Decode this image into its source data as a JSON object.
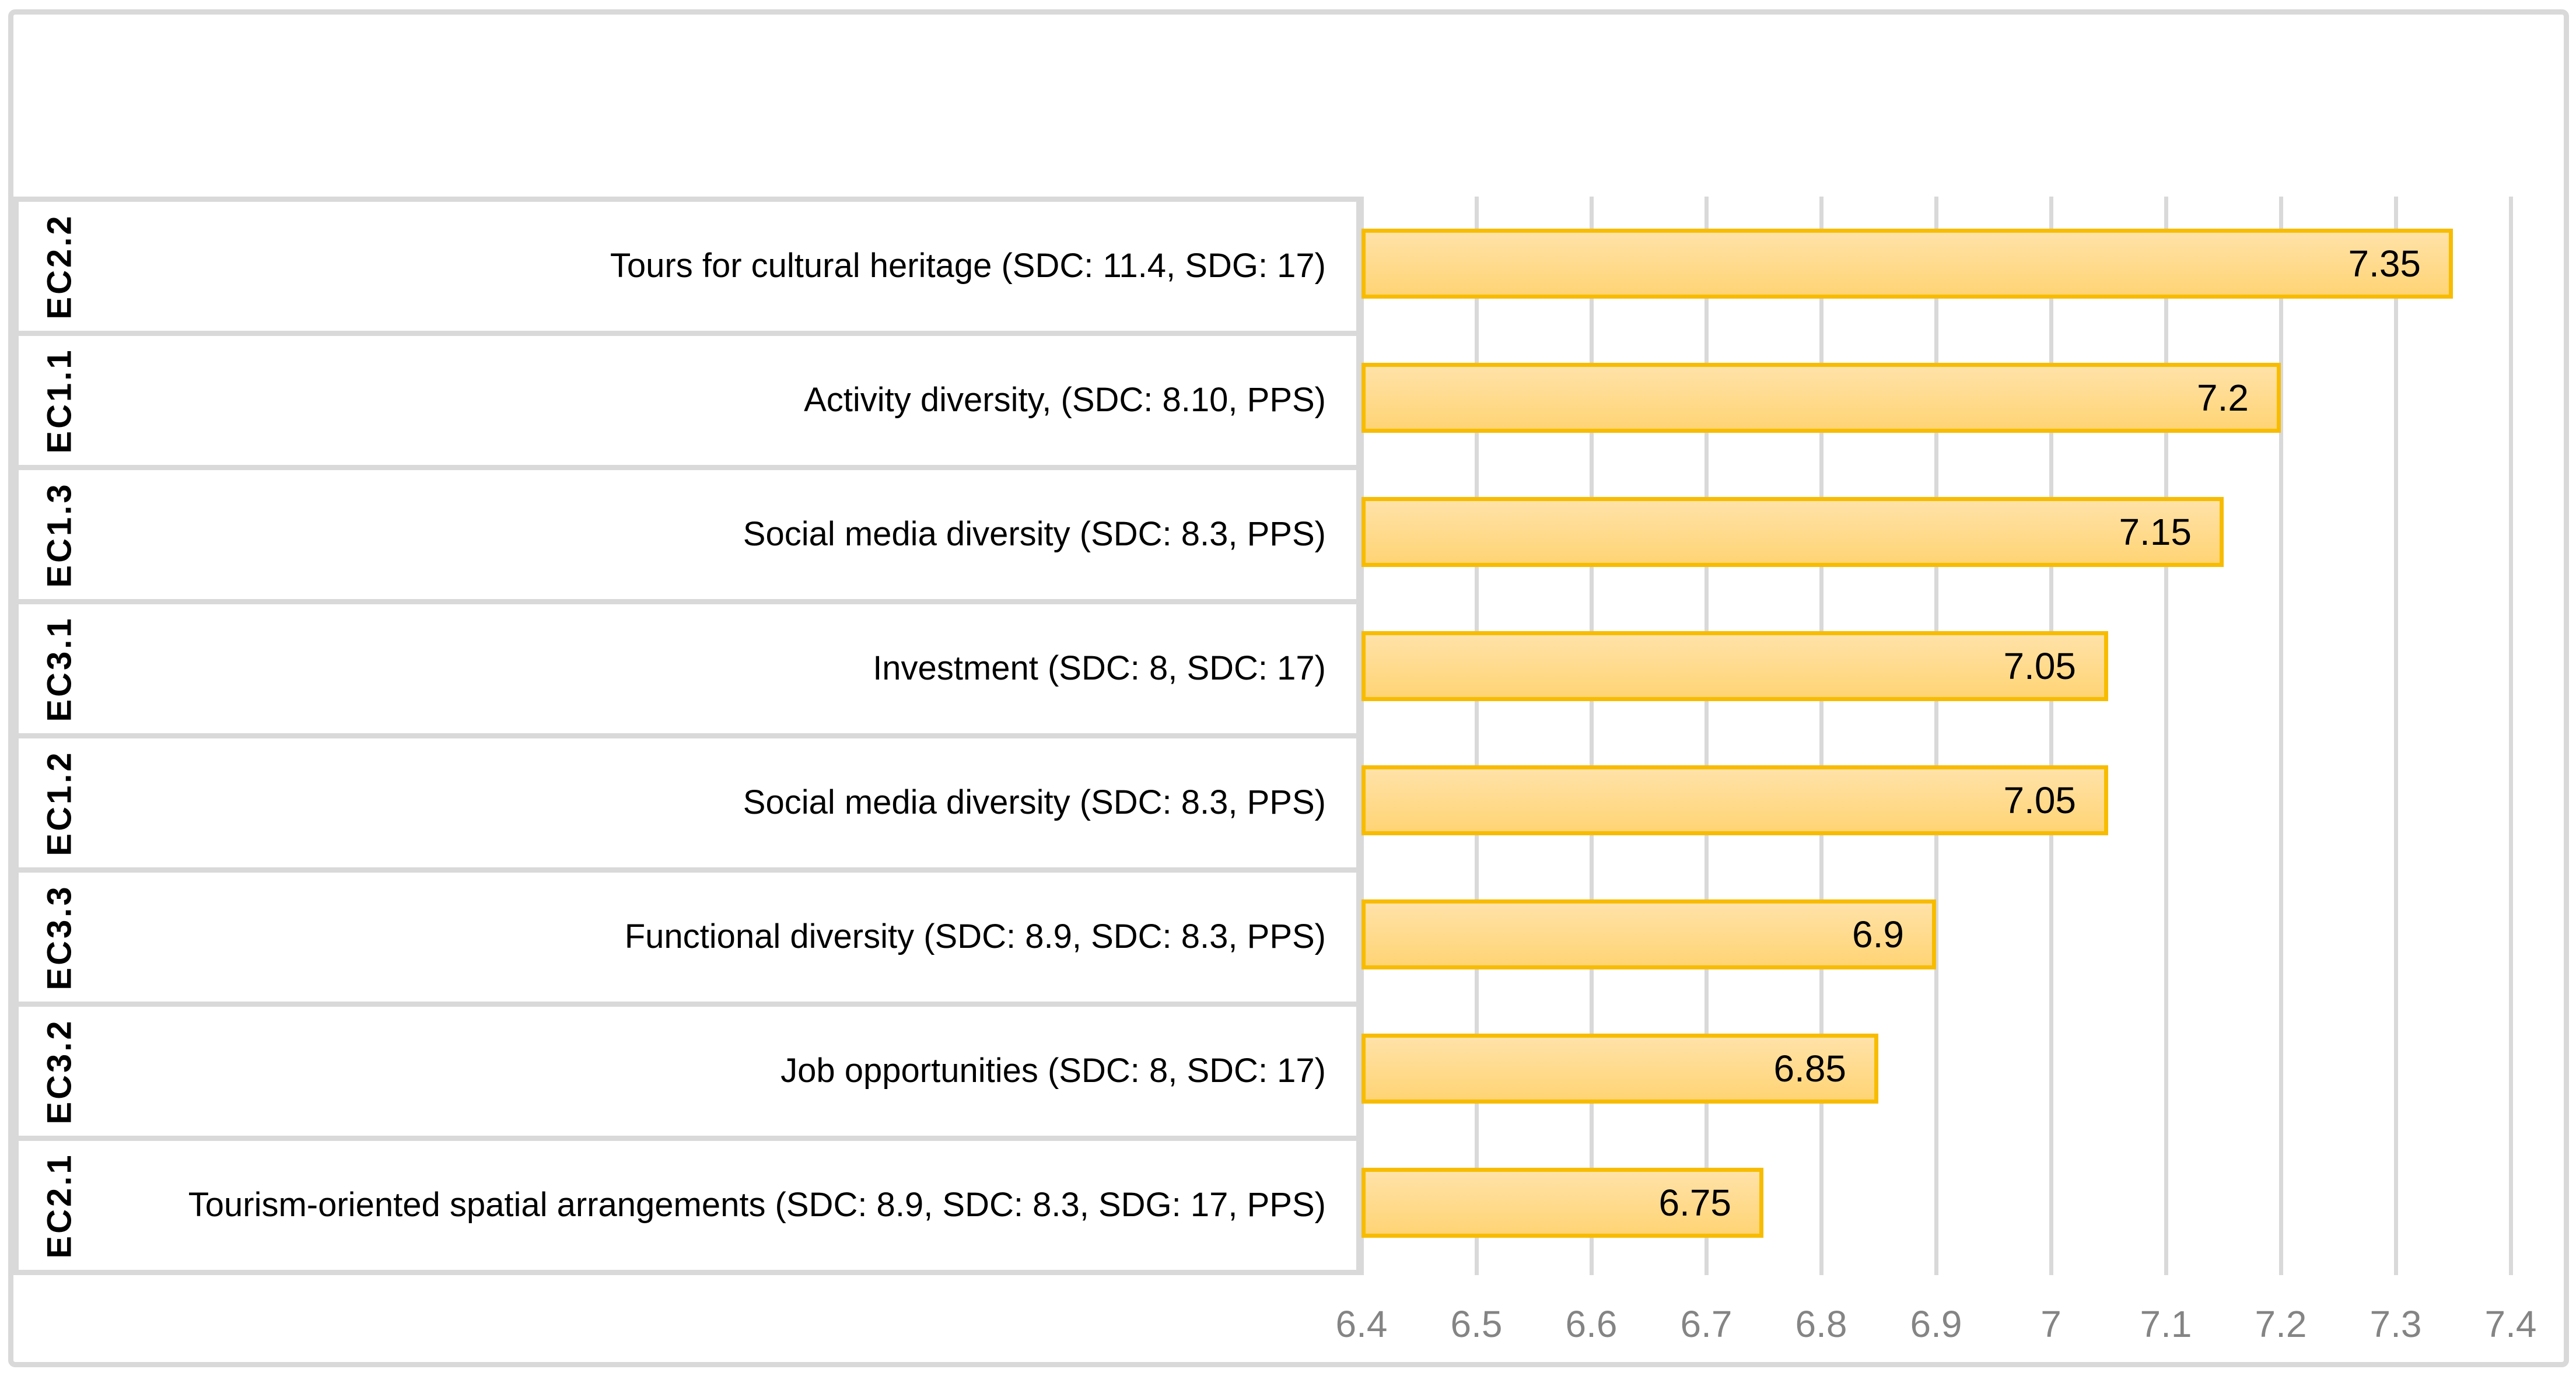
{
  "chart_data": {
    "type": "bar",
    "orientation": "horizontal",
    "title": "",
    "xlabel": "",
    "ylabel": "",
    "grid": true,
    "legend": false,
    "categories": [
      {
        "group": "EC2.2",
        "label": "Tours for cultural heritage (SDC: 11.4, SDG: 17)",
        "value": 7.35,
        "value_label": "7.35"
      },
      {
        "group": "EC1.1",
        "label": "Activity diversity, (SDC: 8.10, PPS)",
        "value": 7.2,
        "value_label": "7.2"
      },
      {
        "group": "EC1.3",
        "label": "Social media diversity (SDC: 8.3, PPS)",
        "value": 7.15,
        "value_label": "7.15"
      },
      {
        "group": "EC3.1",
        "label": "Investment (SDC: 8, SDC: 17)",
        "value": 7.05,
        "value_label": "7.05"
      },
      {
        "group": "EC1.2",
        "label": "Social media diversity (SDC: 8.3, PPS)",
        "value": 7.05,
        "value_label": "7.05"
      },
      {
        "group": "EC3.3",
        "label": "Functional diversity (SDC: 8.9, SDC: 8.3, PPS)",
        "value": 6.9,
        "value_label": "6.9"
      },
      {
        "group": "EC3.2",
        "label": "Job opportunities (SDC: 8, SDC: 17)",
        "value": 6.85,
        "value_label": "6.85"
      },
      {
        "group": "EC2.1",
        "label": "Tourism-oriented spatial arrangements (SDC: 8.9, SDC: 8.3, SDG: 17, PPS)",
        "value": 6.75,
        "value_label": "6.75"
      }
    ],
    "x_axis": {
      "min": 6.4,
      "max": 7.4,
      "gridline_step": 0.1,
      "ticks": [
        "6.4",
        "6.5",
        "6.6",
        "6.7",
        "6.8",
        "6.9",
        "7",
        "7.1",
        "7.2",
        "7.3",
        "7.4"
      ]
    },
    "colors": {
      "bar_fill_top": "#FFE2A8",
      "bar_fill_bottom": "#FFD475",
      "bar_border": "#F7BC00",
      "gridline": "#D9D9D9",
      "tick_text": "#848484"
    }
  }
}
